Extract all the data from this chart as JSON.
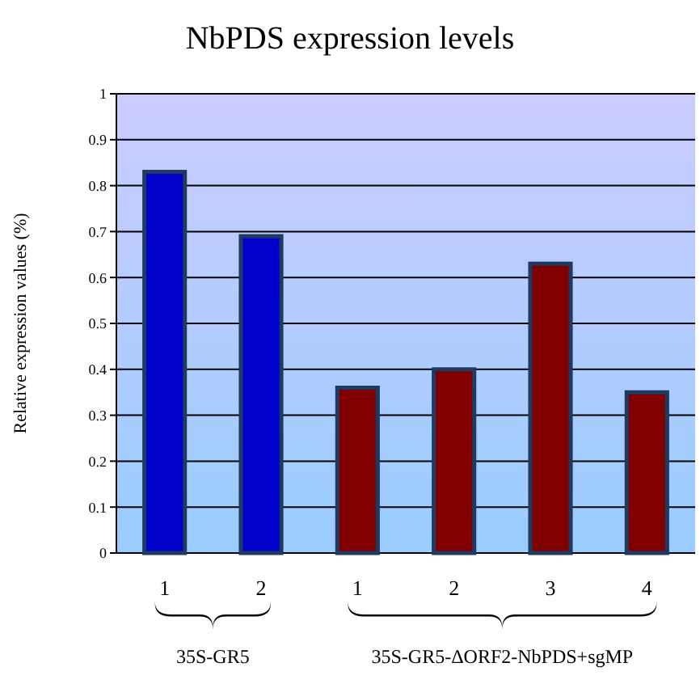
{
  "chart_data": {
    "type": "bar",
    "title": "NbPDS expression levels",
    "ylabel": "Relative expression values (%)",
    "categories": [
      "1",
      "2",
      "1",
      "2",
      "3",
      "4"
    ],
    "values": [
      0.83,
      0.69,
      0.36,
      0.4,
      0.63,
      0.35
    ],
    "colors": [
      "#0000cc",
      "#0000cc",
      "#800000",
      "#800000",
      "#800000",
      "#800000"
    ],
    "ylim": [
      0,
      1
    ],
    "yticks": [
      0,
      0.1,
      0.2,
      0.3,
      0.4,
      0.5,
      0.6,
      0.7,
      0.8,
      0.9,
      1
    ],
    "grid": "y",
    "annotations": [
      "35S-GR5",
      "35S-GR5-ΔORF2-NbPDS+sgMP"
    ]
  }
}
